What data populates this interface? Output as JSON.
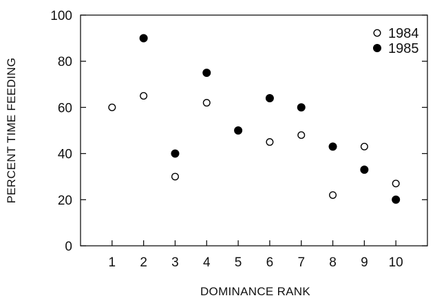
{
  "chart_data": {
    "type": "scatter",
    "xlabel": "DOMINANCE RANK",
    "ylabel": "PERCENT TIME FEEDING",
    "x_ticks": [
      "1",
      "2",
      "3",
      "4",
      "5",
      "6",
      "7",
      "8",
      "9",
      "10"
    ],
    "y_ticks": [
      "0",
      "20",
      "40",
      "60",
      "80",
      "100"
    ],
    "xlim": [
      0,
      11
    ],
    "ylim": [
      0,
      100
    ],
    "grid": false,
    "legend_position": "top-right",
    "series": [
      {
        "name": "1984",
        "marker": "open-circle",
        "points": [
          {
            "x": 1,
            "y": 60
          },
          {
            "x": 2,
            "y": 65
          },
          {
            "x": 3,
            "y": 30
          },
          {
            "x": 4,
            "y": 62
          },
          {
            "x": 6,
            "y": 45
          },
          {
            "x": 7,
            "y": 48
          },
          {
            "x": 8,
            "y": 22
          },
          {
            "x": 9,
            "y": 43
          },
          {
            "x": 10,
            "y": 27
          }
        ]
      },
      {
        "name": "1985",
        "marker": "filled-circle",
        "points": [
          {
            "x": 2,
            "y": 90
          },
          {
            "x": 3,
            "y": 40
          },
          {
            "x": 4,
            "y": 75
          },
          {
            "x": 5,
            "y": 50
          },
          {
            "x": 6,
            "y": 64
          },
          {
            "x": 7,
            "y": 60
          },
          {
            "x": 8,
            "y": 43
          },
          {
            "x": 9,
            "y": 33
          },
          {
            "x": 10,
            "y": 20
          }
        ]
      }
    ]
  }
}
